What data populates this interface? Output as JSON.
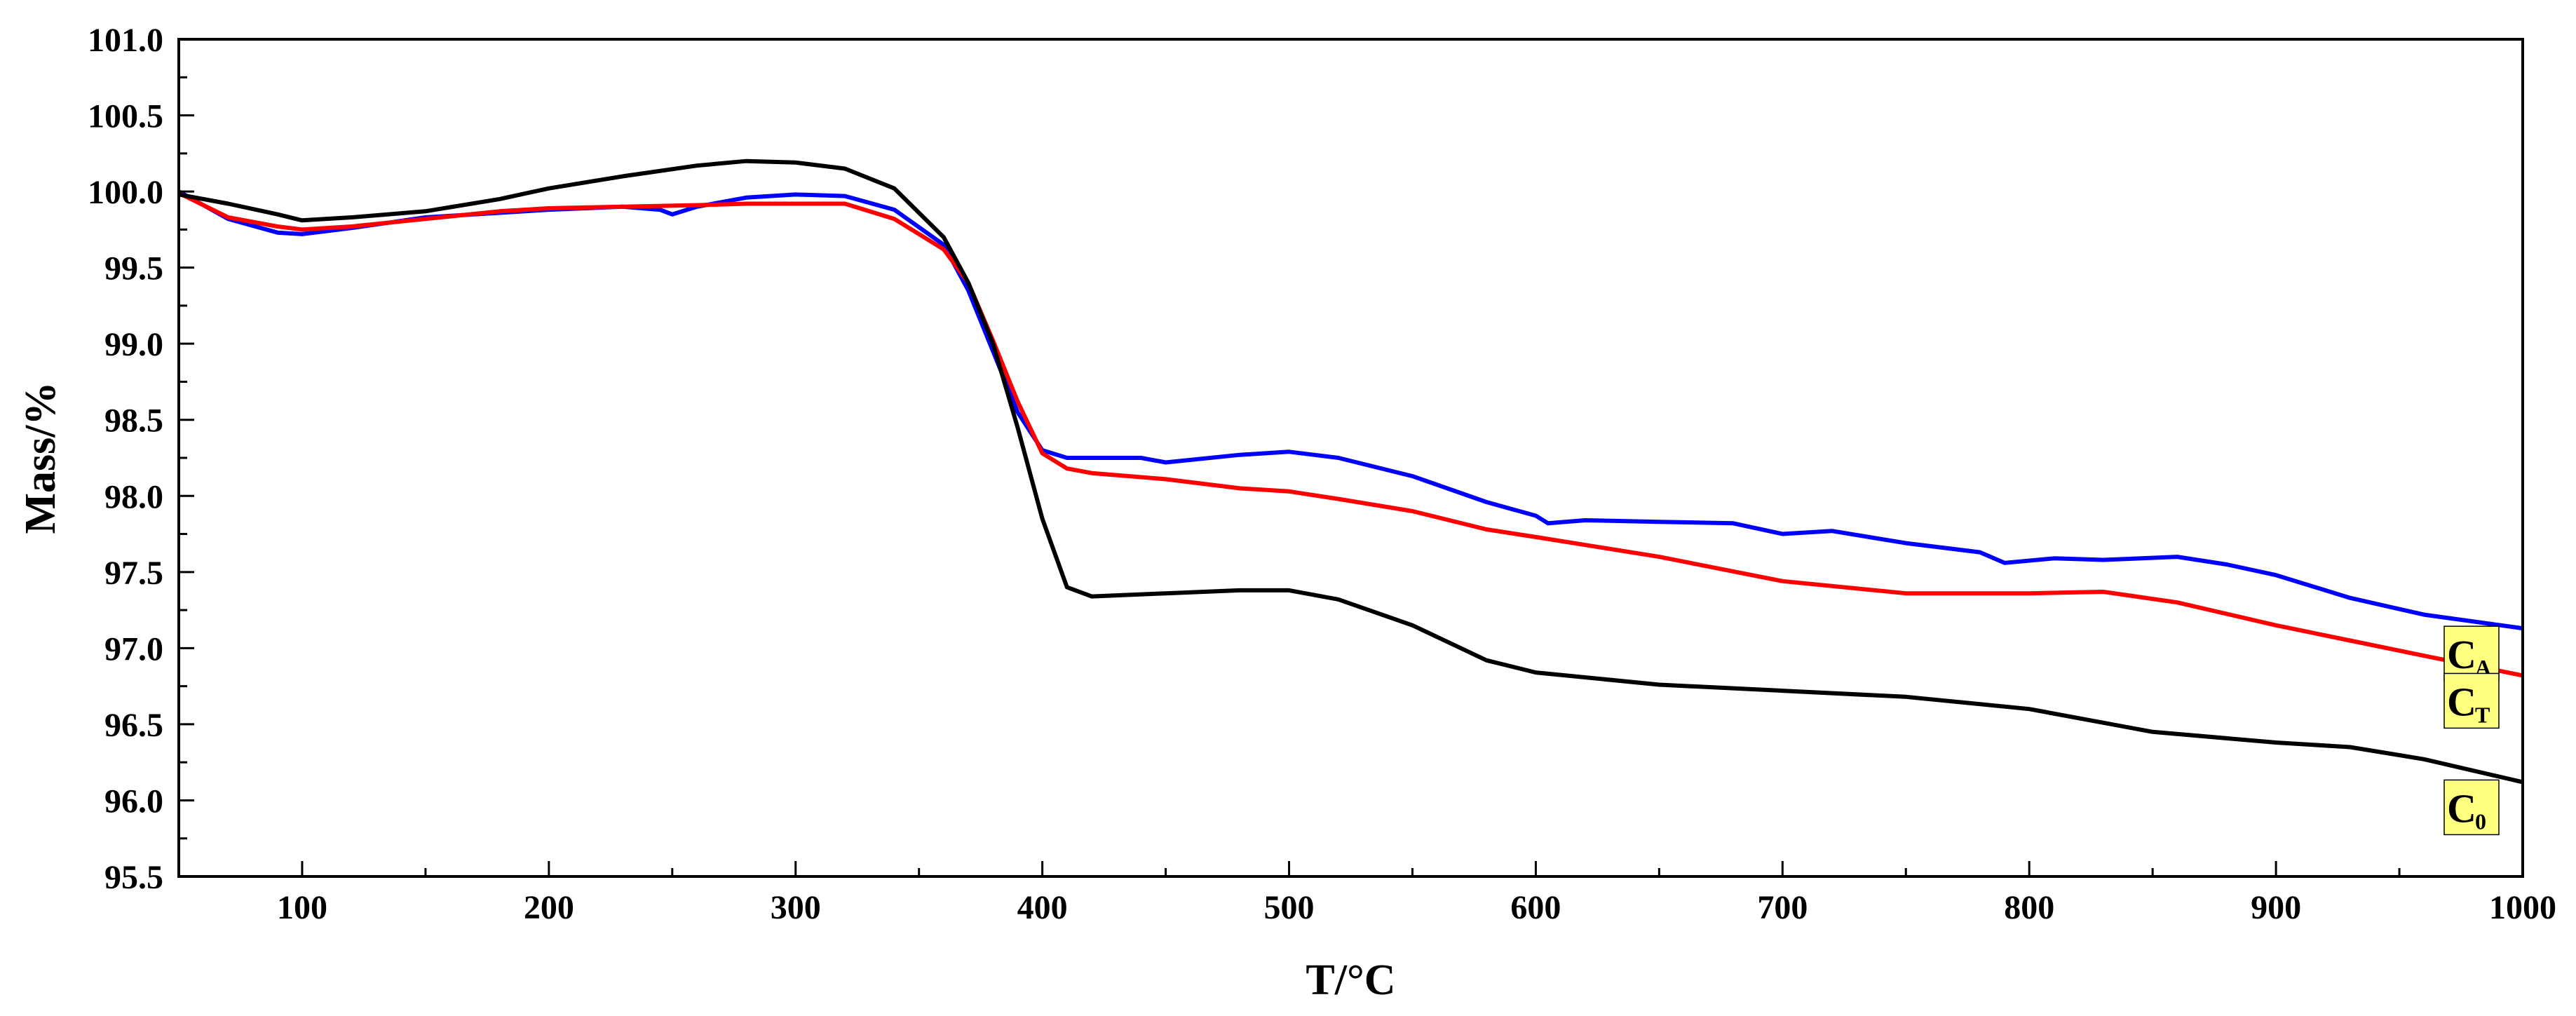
{
  "chart_data": {
    "type": "line",
    "title": "",
    "xlabel": "T/°C",
    "ylabel": "Mass/%",
    "xlim": [
      50,
      1000
    ],
    "ylim": [
      95.5,
      101.0
    ],
    "xticks": [
      100,
      200,
      300,
      400,
      500,
      600,
      700,
      800,
      900,
      1000
    ],
    "xtick_labels": [
      "100",
      "200",
      "300",
      "400",
      "500",
      "600",
      "700",
      "800",
      "900",
      "1000"
    ],
    "yticks": [
      95.5,
      96.0,
      96.5,
      97.0,
      97.5,
      98.0,
      98.5,
      99.0,
      99.5,
      100.0,
      100.5,
      101.0
    ],
    "ytick_labels": [
      "95.5",
      "96.0",
      "96.5",
      "97.0",
      "97.5",
      "98.0",
      "98.5",
      "99.0",
      "99.5",
      "100.0",
      "100.5",
      "101.0"
    ],
    "grid": false,
    "legend": "inline tags at right end of curves",
    "series": [
      {
        "name": "C0",
        "tag_main": "C",
        "tag_sub": "0",
        "color": "#000000",
        "x": [
          50,
          70,
          90,
          100,
          120,
          150,
          180,
          200,
          230,
          260,
          280,
          300,
          320,
          340,
          360,
          370,
          380,
          390,
          400,
          410,
          420,
          450,
          480,
          500,
          520,
          550,
          580,
          600,
          650,
          700,
          750,
          800,
          850,
          900,
          930,
          960,
          1000
        ],
        "y": [
          99.98,
          99.92,
          99.85,
          99.81,
          99.83,
          99.87,
          99.95,
          100.02,
          100.1,
          100.17,
          100.2,
          100.19,
          100.15,
          100.02,
          99.7,
          99.4,
          99.0,
          98.45,
          97.85,
          97.4,
          97.34,
          97.36,
          97.38,
          97.38,
          97.32,
          97.15,
          96.92,
          96.84,
          96.76,
          96.72,
          96.68,
          96.6,
          96.45,
          96.38,
          96.35,
          96.27,
          96.12
        ]
      },
      {
        "name": "CA",
        "tag_main": "C",
        "tag_sub": "A",
        "color": "#0000ff",
        "x": [
          50,
          70,
          90,
          100,
          120,
          150,
          180,
          200,
          230,
          245,
          250,
          260,
          280,
          300,
          320,
          340,
          360,
          370,
          380,
          390,
          400,
          410,
          420,
          440,
          450,
          480,
          500,
          520,
          550,
          580,
          600,
          605,
          620,
          650,
          680,
          700,
          720,
          750,
          780,
          790,
          810,
          830,
          860,
          880,
          900,
          930,
          960,
          1000
        ],
        "y": [
          100.0,
          99.82,
          99.73,
          99.72,
          99.76,
          99.83,
          99.86,
          99.88,
          99.9,
          99.88,
          99.85,
          99.9,
          99.96,
          99.98,
          99.97,
          99.88,
          99.65,
          99.35,
          98.95,
          98.55,
          98.3,
          98.25,
          98.25,
          98.25,
          98.22,
          98.27,
          98.29,
          98.25,
          98.13,
          97.96,
          97.87,
          97.82,
          97.84,
          97.83,
          97.82,
          97.75,
          97.77,
          97.69,
          97.63,
          97.56,
          97.59,
          97.58,
          97.6,
          97.55,
          97.48,
          97.33,
          97.22,
          97.13
        ]
      },
      {
        "name": "CT",
        "tag_main": "C",
        "tag_sub": "T",
        "color": "#ff0000",
        "x": [
          50,
          70,
          90,
          100,
          120,
          150,
          180,
          200,
          230,
          260,
          280,
          300,
          320,
          340,
          360,
          370,
          380,
          390,
          400,
          410,
          420,
          450,
          480,
          500,
          520,
          550,
          580,
          600,
          650,
          700,
          750,
          800,
          830,
          860,
          900,
          930,
          960,
          1000
        ],
        "y": [
          99.99,
          99.83,
          99.77,
          99.75,
          99.77,
          99.82,
          99.87,
          99.89,
          99.9,
          99.91,
          99.92,
          99.92,
          99.92,
          99.82,
          99.62,
          99.4,
          99.02,
          98.62,
          98.28,
          98.18,
          98.15,
          98.11,
          98.05,
          98.03,
          97.98,
          97.9,
          97.78,
          97.73,
          97.6,
          97.44,
          97.36,
          97.36,
          97.37,
          97.3,
          97.15,
          97.05,
          96.95,
          96.82
        ]
      }
    ]
  }
}
